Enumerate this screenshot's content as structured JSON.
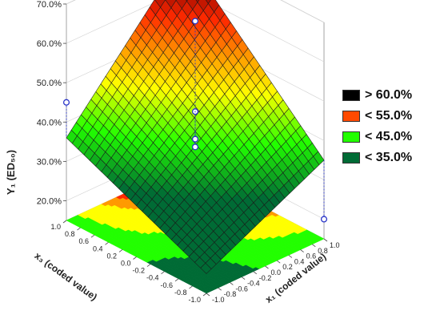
{
  "chart_data": {
    "type": "surface3d",
    "title": "",
    "zlabel": "Y₁ (ED₅₀)",
    "xlabel": "x₁ (coded value)",
    "ylabel": "x₃ (coded value)",
    "zlim": [
      15,
      70
    ],
    "z_ticks": [
      "20.0%",
      "30.0%",
      "40.0%",
      "50.0%",
      "60.0%",
      "70.0%"
    ],
    "x_ticks": [
      "-1.0",
      "-0.8",
      "-0.6",
      "-0.4",
      "-0.2",
      "0.0",
      "0.2",
      "0.4",
      "0.6",
      "0.8",
      "1.0"
    ],
    "y_ticks": [
      "-1.0",
      "-0.8",
      "-0.6",
      "-0.4",
      "-0.2",
      "0.0",
      "0.2",
      "0.4",
      "0.6",
      "0.8",
      "1.0"
    ],
    "surface_corners": [
      {
        "x1": -1,
        "x3": -1,
        "z": 20
      },
      {
        "x1": 1,
        "x3": -1,
        "z": 35
      },
      {
        "x1": -1,
        "x3": 1,
        "z": 36
      },
      {
        "x1": 1,
        "x3": 1,
        "z": 69
      }
    ],
    "design_points": [
      {
        "x1": 1,
        "x3": 1,
        "z": 60
      },
      {
        "x1": 1,
        "x3": 1,
        "z": 70
      },
      {
        "x1": 1,
        "x3": -1,
        "z": 20
      },
      {
        "x1": -1,
        "x3": 1,
        "z": 45
      },
      {
        "x1": 0,
        "x3": 0,
        "z": 45
      },
      {
        "x1": 0,
        "x3": 0,
        "z": 36
      },
      {
        "x1": 0,
        "x3": 0,
        "z": 38
      },
      {
        "x1": 0,
        "x3": 0,
        "z": 38
      },
      {
        "x1": 0,
        "x3": 0,
        "z": 68
      }
    ],
    "legend_position": "right",
    "legend": [
      {
        "label": "> 60.0%",
        "color": "#000000"
      },
      {
        "label": "< 55.0%",
        "color": "#ff4a00"
      },
      {
        "label": "< 45.0%",
        "color": "#22ff00"
      },
      {
        "label": "< 35.0%",
        "color": "#006b35"
      }
    ],
    "colors": {
      "dark_green": "#006b35",
      "green": "#22ff00",
      "yellow": "#ffff00",
      "orange": "#ff9a00",
      "red": "#ff2a00",
      "dark_red": "#800000",
      "black": "#000000",
      "point": "#2a35c8"
    }
  }
}
